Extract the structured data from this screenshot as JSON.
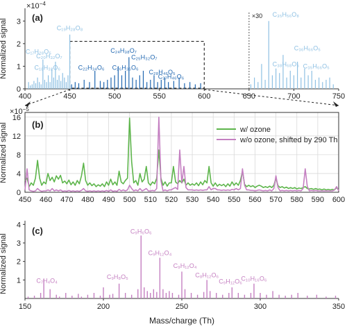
{
  "chart_data": [
    {
      "type": "bar",
      "panel_label": "(a)",
      "scale_label": "×10",
      "scale_exp": "−4",
      "ylabel": "Normalized signal",
      "xlim": [
        400,
        750
      ],
      "ylim": [
        0,
        3.5
      ],
      "xticks": [
        400,
        450,
        500,
        550,
        600,
        650,
        700,
        750
      ],
      "yticks": [
        0,
        1,
        2,
        3
      ],
      "grid": false,
      "multiplier_annotation": "×30",
      "multiplier_at": 650,
      "light_series_color": "#8ec0e3",
      "dark_series_color": "#1f66b0",
      "light_series": {
        "x": [
          404,
          406,
          408,
          410,
          412,
          414,
          416,
          418,
          420,
          422,
          424,
          426,
          428,
          430,
          432,
          434,
          436,
          438,
          440,
          442,
          444,
          446,
          448,
          450,
          652,
          656,
          660,
          664,
          668,
          672,
          676,
          680,
          684,
          688,
          692,
          696,
          700,
          704,
          708,
          712,
          716,
          720,
          724,
          728,
          732,
          736,
          740,
          744
        ],
        "values": [
          0.3,
          0.15,
          0.2,
          0.35,
          0.25,
          0.5,
          0.3,
          0.2,
          1.3,
          0.4,
          0.3,
          0.6,
          0.3,
          0.9,
          0.5,
          1.2,
          0.4,
          0.6,
          0.35,
          0.7,
          0.5,
          0.3,
          0.6,
          2.4,
          0.2,
          0.5,
          0.3,
          1.1,
          0.4,
          3.0,
          0.6,
          0.9,
          0.7,
          1.5,
          0.5,
          0.8,
          0.6,
          1.2,
          0.5,
          0.9,
          0.6,
          0.8,
          0.4,
          0.5,
          0.3,
          0.4,
          0.5,
          0.2
        ]
      },
      "dark_series": {
        "x": [
          452,
          456,
          460,
          466,
          472,
          478,
          484,
          488,
          492,
          496,
          500,
          504,
          508,
          512,
          516,
          520,
          524,
          528,
          532,
          536,
          540,
          544,
          548,
          552,
          556,
          560,
          566,
          572,
          578,
          584,
          590,
          596
        ],
        "values": [
          0.2,
          0.3,
          0.25,
          0.4,
          0.3,
          0.8,
          0.35,
          0.3,
          0.4,
          0.5,
          0.6,
          1.0,
          0.6,
          0.8,
          1.4,
          0.5,
          0.4,
          0.6,
          0.8,
          0.3,
          0.4,
          0.6,
          0.3,
          0.4,
          0.5,
          0.3,
          0.35,
          0.5,
          0.25,
          0.3,
          0.2,
          0.25
        ]
      },
      "labels": [
        {
          "text": "C₁₉H₂₈O₈",
          "x": 450,
          "y": 2.6,
          "tone": "light"
        },
        {
          "text": "C₁₇H₂₈O₅",
          "x": 415,
          "y": 1.55,
          "tone": "light"
        },
        {
          "text": "C₂₀H₃₂O₇",
          "x": 427,
          "y": 1.35,
          "tone": "light"
        },
        {
          "text": "C₁₈H₃₂O₆",
          "x": 425,
          "y": 0.85,
          "tone": "light"
        },
        {
          "text": "C₂₂H₃₄O₆",
          "x": 474,
          "y": 0.85,
          "tone": "dark"
        },
        {
          "text": "C₂₄H₃₈O₇",
          "x": 510,
          "y": 1.6,
          "tone": "dark"
        },
        {
          "text": "C₂₆H₃₆O₆",
          "x": 512,
          "y": 0.85,
          "tone": "dark"
        },
        {
          "text": "C₂₅H₃₂O₇",
          "x": 533,
          "y": 1.3,
          "tone": "dark"
        },
        {
          "text": "C₂₈H₄₆O₅",
          "x": 553,
          "y": 0.65,
          "tone": "dark"
        },
        {
          "text": "C₂₇H₄₆O₆",
          "x": 563,
          "y": 0.45,
          "tone": "dark"
        },
        {
          "text": "C₃₅H₅₆O₈",
          "x": 691,
          "y": 3.2,
          "tone": "light"
        },
        {
          "text": "C₃₆H₆₆O₅",
          "x": 715,
          "y": 1.7,
          "tone": "light"
        },
        {
          "text": "C₃₈H₆₈O₅",
          "x": 691,
          "y": 1.0,
          "tone": "light"
        },
        {
          "text": "C₃₅H₆₆O₅",
          "x": 725,
          "y": 0.9,
          "tone": "light"
        }
      ],
      "zoom_window": {
        "xmin": 450,
        "xmax": 600,
        "ymin": 0,
        "ymax": 2.1
      }
    },
    {
      "type": "line",
      "panel_label": "(b)",
      "scale_label": "×10",
      "scale_exp": "−5",
      "ylabel": "Normalized signal",
      "xlim": [
        450,
        600
      ],
      "ylim": [
        0,
        17
      ],
      "xticks": [
        450,
        460,
        470,
        480,
        490,
        500,
        510,
        520,
        530,
        540,
        550,
        560,
        570,
        580,
        590,
        600
      ],
      "yticks": [
        0,
        4,
        8,
        12,
        16
      ],
      "grid": true,
      "legend_position": "top-right",
      "series": [
        {
          "name": "w/ ozone",
          "color": "#5db54b",
          "x": [
            450,
            451,
            452,
            453,
            454,
            455,
            456,
            457,
            458,
            459,
            460,
            461,
            462,
            463,
            464,
            465,
            466,
            467,
            468,
            469,
            470,
            471,
            472,
            473,
            474,
            475,
            476,
            477,
            478,
            479,
            480,
            481,
            482,
            483,
            484,
            485,
            486,
            487,
            488,
            489,
            490,
            491,
            492,
            493,
            494,
            495,
            496,
            497,
            498,
            499,
            500,
            501,
            502,
            503,
            504,
            505,
            506,
            507,
            508,
            509,
            510,
            511,
            512,
            513,
            514,
            515,
            516,
            517,
            518,
            519,
            520,
            521,
            522,
            523,
            524,
            525,
            526,
            527,
            528,
            529,
            530,
            531,
            532,
            533,
            534,
            535,
            536,
            537,
            538,
            539,
            540,
            541,
            542,
            543,
            544,
            545,
            546,
            547,
            548,
            549,
            550,
            551,
            552,
            553,
            554,
            555,
            556,
            557,
            558,
            559,
            560,
            561,
            562,
            563,
            564,
            565,
            566,
            567,
            568,
            569,
            570,
            571,
            572,
            573,
            574,
            575,
            576,
            577,
            578,
            579,
            580,
            581,
            582,
            583,
            584,
            585,
            586,
            587,
            588,
            589,
            590,
            591,
            592,
            593,
            594,
            595,
            596,
            597,
            598,
            599,
            600
          ],
          "values": [
            2.5,
            3.0,
            1.2,
            2.0,
            1.5,
            3.0,
            6.8,
            3.0,
            1.5,
            2.2,
            1.8,
            4.0,
            2.5,
            3.2,
            2.2,
            3.5,
            2.8,
            3.6,
            2.0,
            2.4,
            1.8,
            2.6,
            1.6,
            2.2,
            1.5,
            2.5,
            1.8,
            3.5,
            6.2,
            2.5,
            1.5,
            2.0,
            1.4,
            1.8,
            1.2,
            1.6,
            1.3,
            1.8,
            1.2,
            2.2,
            1.5,
            2.8,
            1.6,
            2.2,
            1.5,
            4.5,
            2.2,
            1.8,
            2.5,
            3.0,
            15.8,
            6.5,
            2.0,
            2.5,
            1.5,
            4.0,
            2.2,
            2.8,
            5.5,
            2.0,
            1.5,
            2.2,
            1.8,
            3.0,
            9.0,
            3.0,
            1.5,
            2.2,
            1.3,
            2.0,
            2.0,
            5.5,
            2.2,
            1.8,
            2.5,
            2.0,
            2.8,
            1.5,
            2.0,
            1.5,
            1.8,
            1.5,
            2.0,
            1.4,
            2.2,
            1.6,
            2.5,
            2.0,
            5.5,
            2.0,
            1.3,
            2.0,
            1.3,
            1.7,
            1.4,
            1.7,
            1.2,
            1.8,
            1.3,
            2.2,
            1.5,
            2.0,
            1.5,
            2.5,
            4.5,
            1.7,
            1.2,
            1.5,
            1.2,
            1.4,
            1.0,
            1.3,
            1.5,
            1.3,
            1.0,
            1.2,
            1.0,
            1.3,
            1.0,
            1.5,
            3.0,
            1.4,
            1.0,
            1.2,
            0.9,
            1.1,
            0.8,
            1.0,
            0.8,
            1.0,
            0.7,
            0.9,
            0.8,
            1.0,
            1.2,
            0.8,
            0.7,
            0.8,
            0.6,
            0.8,
            0.6,
            0.7,
            0.5,
            0.7,
            0.5,
            0.6,
            0.5,
            0.6,
            0.5,
            1.0,
            0.5
          ]
        },
        {
          "name": "w/o ozone, shifted by 290 Th",
          "color": "#c47fc1",
          "x": [
            450,
            451,
            452,
            453,
            454,
            455,
            456,
            457,
            458,
            459,
            460,
            461,
            462,
            463,
            464,
            465,
            466,
            467,
            468,
            469,
            470,
            471,
            472,
            473,
            474,
            475,
            476,
            477,
            478,
            479,
            480,
            481,
            482,
            483,
            484,
            485,
            486,
            487,
            488,
            489,
            490,
            491,
            492,
            493,
            494,
            495,
            496,
            497,
            498,
            499,
            500,
            501,
            502,
            503,
            504,
            505,
            506,
            507,
            508,
            509,
            510,
            511,
            512,
            513,
            514,
            515,
            516,
            517,
            518,
            519,
            520,
            521,
            522,
            523,
            524,
            525,
            526,
            527,
            528,
            529,
            530,
            531,
            532,
            533,
            534,
            535,
            536,
            537,
            538,
            539,
            540,
            541,
            542,
            543,
            544,
            545,
            546,
            547,
            548,
            549,
            550,
            551,
            552,
            553,
            554,
            555,
            556,
            557,
            558,
            559,
            560,
            561,
            562,
            563,
            564,
            565,
            566,
            567,
            568,
            569,
            570,
            571,
            572,
            573,
            574,
            575,
            576,
            577,
            578,
            579,
            580,
            581,
            582,
            583,
            584,
            585,
            586,
            587,
            588,
            589,
            590,
            591,
            592,
            593,
            594,
            595,
            596,
            597,
            598,
            599,
            600
          ],
          "values": [
            0.5,
            5.0,
            0.5,
            0.3,
            0.2,
            0.3,
            0.8,
            0.4,
            0.2,
            0.3,
            0.3,
            0.5,
            0.3,
            0.8,
            0.3,
            0.5,
            0.3,
            0.5,
            0.2,
            0.3,
            0.2,
            0.4,
            0.2,
            0.3,
            0.2,
            0.3,
            0.2,
            0.4,
            0.8,
            0.3,
            0.2,
            0.3,
            0.2,
            0.3,
            0.2,
            0.3,
            0.2,
            0.3,
            0.2,
            0.4,
            0.2,
            0.5,
            0.2,
            0.3,
            0.2,
            0.6,
            0.3,
            0.5,
            0.3,
            0.5,
            1.5,
            0.8,
            0.3,
            0.5,
            0.3,
            0.8,
            0.3,
            0.5,
            0.8,
            0.3,
            0.3,
            0.4,
            0.3,
            0.8,
            16.0,
            2.5,
            0.3,
            0.5,
            0.3,
            0.5,
            0.5,
            0.8,
            1.0,
            0.6,
            9.0,
            2.0,
            5.5,
            1.0,
            0.5,
            0.5,
            0.5,
            0.4,
            0.5,
            0.4,
            0.5,
            0.4,
            0.5,
            0.5,
            1.2,
            0.5,
            0.8,
            0.8,
            0.5,
            0.5,
            0.4,
            0.5,
            0.4,
            0.5,
            0.4,
            0.6,
            0.5,
            0.8,
            0.5,
            0.8,
            5.0,
            1.5,
            0.5,
            0.5,
            0.4,
            0.4,
            0.3,
            0.4,
            0.5,
            0.4,
            0.3,
            0.4,
            0.3,
            0.5,
            0.3,
            0.8,
            3.5,
            1.0,
            0.3,
            0.4,
            0.3,
            0.4,
            0.3,
            0.4,
            0.3,
            0.4,
            0.3,
            0.4,
            0.3,
            0.8,
            5.0,
            1.2,
            0.3,
            0.4,
            0.3,
            0.4,
            0.3,
            0.3,
            0.3,
            0.3,
            0.3,
            0.3,
            0.3,
            0.3,
            0.5,
            1.2,
            0.3
          ]
        }
      ]
    },
    {
      "type": "bar",
      "panel_label": "(c)",
      "ylabel": "Normalized signal",
      "xlabel": "Mass/charge (Th)",
      "xlim": [
        150,
        350
      ],
      "ylim": [
        0,
        4.2
      ],
      "xticks": [
        150,
        200,
        250,
        300,
        350
      ],
      "yticks": [
        1,
        2,
        3,
        4
      ],
      "grid": false,
      "color": "#c47fc1",
      "series": [
        {
          "x": [
            152,
            156,
            160,
            162,
            166,
            170,
            172,
            176,
            180,
            184,
            186,
            190,
            194,
            198,
            200,
            204,
            206,
            210,
            214,
            218,
            222,
            224,
            226,
            228,
            230,
            232,
            234,
            236,
            238,
            240,
            242,
            244,
            248,
            250,
            252,
            256,
            260,
            264,
            266,
            268,
            272,
            276,
            280,
            282,
            286,
            290,
            294,
            296,
            300,
            304,
            308,
            312,
            316,
            320,
            324,
            330,
            336,
            342,
            348
          ],
          "values": [
            0.1,
            0.15,
            0.3,
            1.05,
            0.5,
            0.2,
            0.1,
            0.3,
            0.15,
            0.25,
            0.1,
            0.2,
            0.3,
            0.15,
            0.6,
            0.2,
            0.25,
            0.8,
            0.3,
            0.2,
            0.5,
            3.4,
            0.6,
            0.4,
            0.3,
            0.5,
            0.35,
            2.2,
            0.5,
            0.3,
            0.4,
            0.3,
            0.2,
            1.45,
            0.5,
            0.3,
            0.2,
            0.35,
            1.0,
            0.4,
            0.3,
            0.2,
            0.3,
            0.6,
            0.3,
            0.2,
            0.3,
            0.8,
            0.3,
            0.2,
            0.4,
            0.2,
            0.15,
            0.2,
            0.3,
            0.15,
            0.2,
            0.1,
            0.15
          ]
        }
      ],
      "labels": [
        {
          "text": "C₇H₄O₄",
          "x": 164,
          "y": 0.85
        },
        {
          "text": "C₉H₈O₅",
          "x": 209,
          "y": 1.05
        },
        {
          "text": "C₉H₆O₆",
          "x": 224,
          "y": 3.5
        },
        {
          "text": "C₉H₁₂O₄",
          "x": 236,
          "y": 2.35
        },
        {
          "text": "C₉H₁₂O₄",
          "x": 252,
          "y": 1.65
        },
        {
          "text": "C₈H₁₂O₆",
          "x": 266,
          "y": 1.15
        },
        {
          "text": "C₉H₁₂O₆",
          "x": 281,
          "y": 0.8
        },
        {
          "text": "C₁₀H₁₆O₆",
          "x": 296,
          "y": 0.95
        }
      ]
    }
  ]
}
